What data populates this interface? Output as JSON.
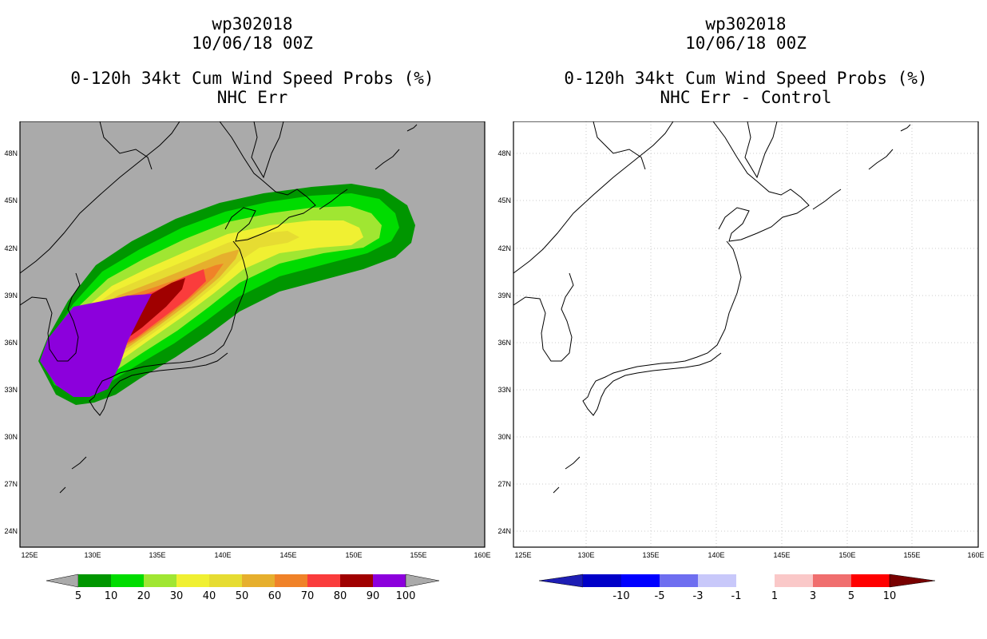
{
  "left_panel": {
    "title_lines": [
      "wp302018",
      "10/06/18 00Z",
      "0-120h 34kt Cum Wind Speed Probs (%)",
      "NHC Err"
    ],
    "lat_labels": [
      "48N",
      "45N",
      "42N",
      "39N",
      "36N",
      "33N",
      "30N",
      "27N",
      "24N"
    ],
    "lon_labels": [
      "125E",
      "130E",
      "135E",
      "140E",
      "145E",
      "150E",
      "155E",
      "160E"
    ],
    "background_color": "#aaaaaa",
    "colorbar": {
      "labels": [
        "5",
        "10",
        "20",
        "30",
        "40",
        "50",
        "60",
        "70",
        "80",
        "90",
        "100"
      ],
      "colors": [
        "#009600",
        "#00dc00",
        "#a0e632",
        "#f0f032",
        "#e6dc32",
        "#e6af2d",
        "#f08228",
        "#fa3c3c",
        "#a00000",
        "#8c00dc"
      ],
      "under_color": "#aaaaaa",
      "over_color": "#aaaaaa"
    }
  },
  "right_panel": {
    "title_lines": [
      "wp302018",
      "10/06/18 00Z",
      "0-120h 34kt Cum Wind Speed Probs (%)",
      "NHC Err - Control"
    ],
    "lat_labels": [
      "48N",
      "45N",
      "42N",
      "39N",
      "36N",
      "33N",
      "30N",
      "27N",
      "24N"
    ],
    "lon_labels": [
      "125E",
      "130E",
      "135E",
      "140E",
      "145E",
      "150E",
      "155E",
      "160E"
    ],
    "colorbar": {
      "labels": [
        "-10",
        "-5",
        "-3",
        "-1",
        "1",
        "3",
        "5",
        "10"
      ],
      "colors": [
        "#0000c8",
        "#0000ff",
        "#6e6ef0",
        "#c8c8fa",
        "#ffffff",
        "#fac8c8",
        "#f06e6e",
        "#ff0000"
      ],
      "under_color": "#1e1eb4",
      "over_color": "#780000"
    }
  }
}
